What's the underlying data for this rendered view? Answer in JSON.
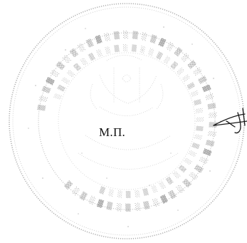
{
  "document": {
    "stamp_place_label": "М.П."
  },
  "seal": {
    "icon": "round-seal-icon",
    "color": "#8a8a8a",
    "outer_ring_text": "Российская Федерация ••• Общество с ограниченной ответственностью",
    "inner_ring_text": "Город ••• Россия ••• ОГРН •••"
  },
  "signature": {
    "icon": "signature-flourish-icon",
    "color": "#1a1a1a"
  }
}
